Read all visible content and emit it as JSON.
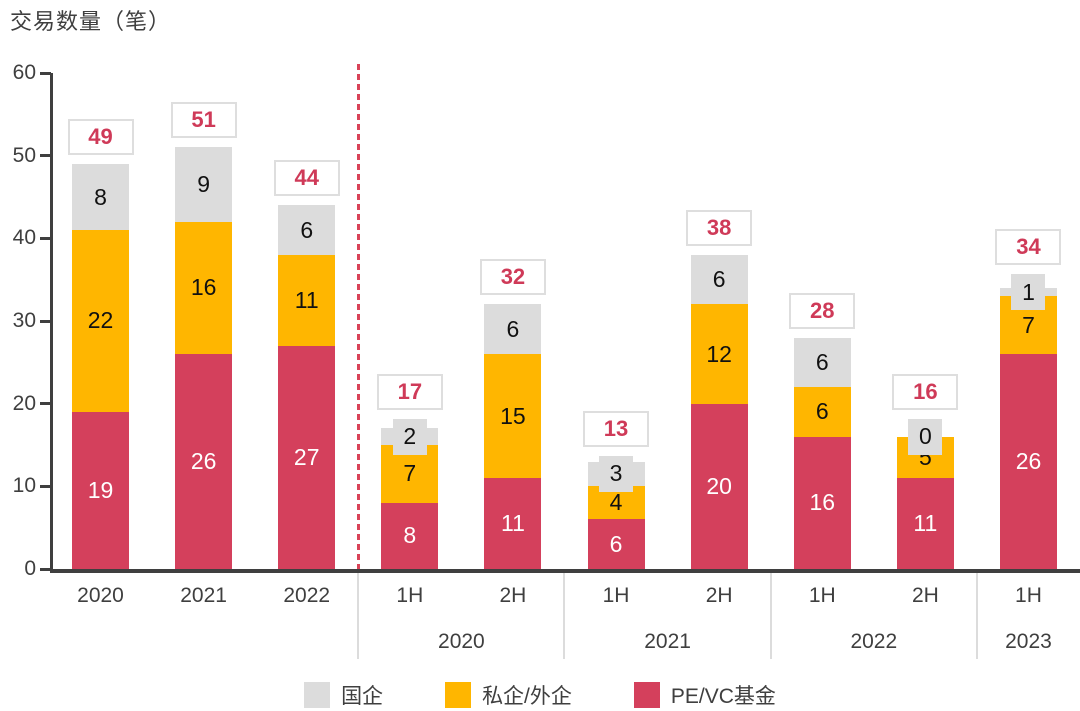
{
  "header": {
    "title": "交易数量（笔）"
  },
  "colors": {
    "pevc_red": "#D4405C",
    "private_orange": "#FFB600",
    "soe_gray": "#DCDCDC",
    "dashed_line_red": "#D94358",
    "axis_dark": "#3F3F3F",
    "total_text_red": "#CF3A58",
    "box_border_gray": "#DEDEDE"
  },
  "chart_data": {
    "type": "bar",
    "stacked": true,
    "title": "交易数量（笔）",
    "xlabel": "",
    "ylabel": "交易数量（笔）",
    "ylim": [
      0,
      60
    ],
    "yticks": [
      0,
      10,
      20,
      30,
      40,
      50,
      60
    ],
    "grid": false,
    "legend_position": "bottom",
    "categories": [
      "2020",
      "2021",
      "2022",
      "1H",
      "2H",
      "1H",
      "2H",
      "1H",
      "2H",
      "1H"
    ],
    "series": [
      {
        "name": "PE/VC基金",
        "color": "#D4405C",
        "values": [
          19,
          26,
          27,
          8,
          11,
          6,
          20,
          16,
          11,
          26
        ]
      },
      {
        "name": "私企/外企",
        "color": "#FFB600",
        "values": [
          22,
          16,
          11,
          7,
          15,
          4,
          12,
          6,
          5,
          7
        ]
      },
      {
        "name": "国企",
        "color": "#DCDCDC",
        "values": [
          8,
          9,
          6,
          2,
          6,
          3,
          6,
          6,
          0,
          1
        ]
      }
    ],
    "totals": [
      49,
      51,
      44,
      17,
      32,
      13,
      38,
      28,
      16,
      34
    ],
    "group_labels": [
      {
        "label": "2020",
        "bars": [
          3,
          4
        ]
      },
      {
        "label": "2021",
        "bars": [
          5,
          6
        ]
      },
      {
        "label": "2022",
        "bars": [
          7,
          8
        ]
      },
      {
        "label": "2023",
        "bars": [
          9
        ]
      }
    ],
    "separator_after_bars": [
      2,
      4,
      6,
      8
    ],
    "dashed_divider_after_bar": 2
  },
  "legend": {
    "items": [
      {
        "label": "国企",
        "color": "#DCDCDC"
      },
      {
        "label": "私企/外企",
        "color": "#FFB600"
      },
      {
        "label": "PE/VC基金",
        "color": "#D4405C"
      }
    ]
  }
}
